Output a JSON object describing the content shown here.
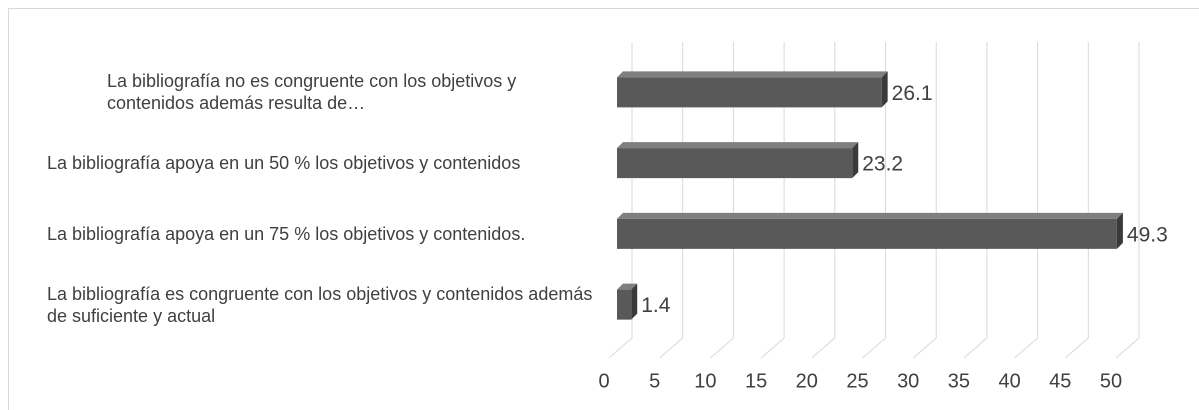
{
  "chart_data": {
    "type": "bar3d",
    "orientation": "horizontal",
    "categories": [
      "La bibliografía no es congruente con los objetivos y contenidos además resulta de…",
      "La bibliografía apoya en un 50 % los objetivos y contenidos",
      "La bibliografía apoya en un 75 % los objetivos y contenidos.",
      "La bibliografía es congruente con los objetivos y contenidos además de suficiente y actual"
    ],
    "values": [
      26.1,
      23.2,
      49.3,
      1.4
    ],
    "color": "#595959",
    "xlim": [
      0,
      50
    ],
    "xticks": [
      0,
      5,
      10,
      15,
      20,
      25,
      30,
      35,
      40,
      45,
      50
    ],
    "grid": true
  }
}
